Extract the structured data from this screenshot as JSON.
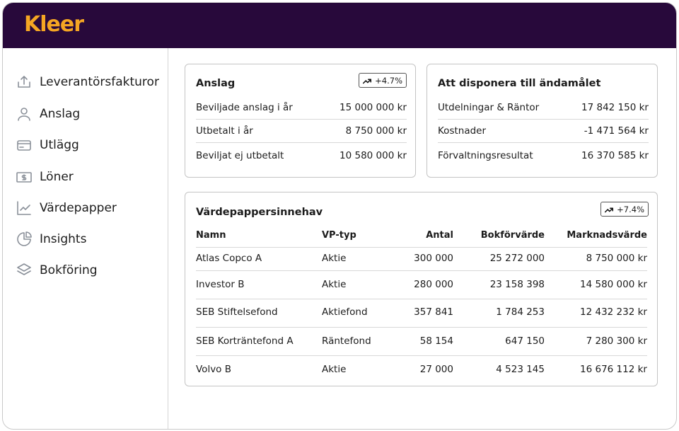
{
  "header": {
    "logo": "Kleer"
  },
  "nav": [
    "Leverantörsfakturor",
    "Anslag",
    "Utlägg",
    "Löner",
    "Värdepapper",
    "Insights",
    "Bokföring"
  ],
  "cards": [
    {
      "title": "Anslag",
      "badge": "+4.7%",
      "rows": [
        [
          "Beviljade anslag i år",
          "15 000 000 kr"
        ],
        [
          "Utbetalt i år",
          "8 750 000 kr"
        ],
        [
          "Beviljat ej utbetalt",
          "10 580 000 kr"
        ]
      ]
    },
    {
      "title": "Att disponera till ändamålet",
      "rows": [
        [
          "Utdelningar & Räntor",
          "17 842 150 kr"
        ],
        [
          "Kostnader",
          "-1 471 564 kr"
        ],
        [
          "Förvaltningsresultat",
          "16 370 585 kr"
        ]
      ]
    }
  ],
  "holdings": {
    "title": "Värdepappersinnehav",
    "badge": "+7.4%",
    "columns": [
      "Namn",
      "VP-typ",
      "Antal",
      "Bokförvärde",
      "Marknadsvärde"
    ],
    "rows": [
      [
        "Atlas Copco A",
        "Aktie",
        "300 000",
        "25 272 000",
        "8 750 000 kr"
      ],
      [
        "Investor B",
        "Aktie",
        "280 000",
        "23 158 398",
        "14 580 000 kr"
      ],
      [
        "SEB Stiftelsefond",
        "Aktiefond",
        "357 841",
        "1 784 253",
        "12 432 232 kr"
      ],
      [
        "SEB Korträntefond A",
        "Räntefond",
        "58 154",
        "647 150",
        "7 280 300 kr"
      ],
      [
        "Volvo B",
        "Aktie",
        "27 000",
        "4 523 145",
        "16 676 112 kr"
      ]
    ]
  }
}
